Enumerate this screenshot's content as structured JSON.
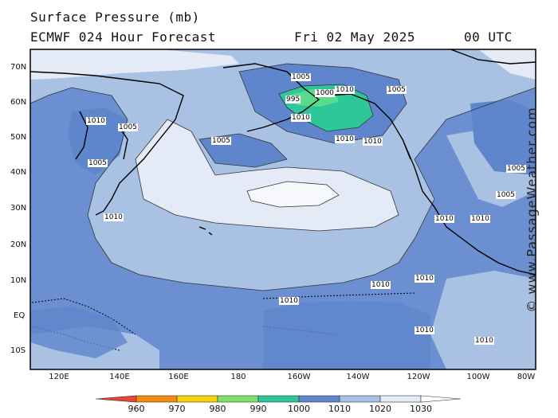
{
  "header": {
    "title": "Surface Pressure (mb)",
    "model": "ECMWF 024 Hour Forecast",
    "date": "Fri 02 May 2025",
    "time": "00 UTC"
  },
  "lat_labels": [
    "70N",
    "60N",
    "50N",
    "40N",
    "30N",
    "20N",
    "10N",
    "EQ",
    "10S"
  ],
  "lon_labels": [
    "120E",
    "140E",
    "160E",
    "180",
    "160W",
    "140W",
    "120W",
    "100W",
    "80W"
  ],
  "colorbar": {
    "labels": [
      "960",
      "970",
      "980",
      "990",
      "1000",
      "1010",
      "1020",
      "1030"
    ],
    "colors": [
      "#e8443a",
      "#f28c0f",
      "#f5d20a",
      "#7ee26a",
      "#2ec79a",
      "#5f86cc",
      "#a8c0e2",
      "#e4ebf6"
    ]
  },
  "isobar_labels": [
    "1010",
    "1005",
    "1000",
    "995",
    "1010",
    "1010",
    "1005",
    "1010",
    "1005",
    "1005",
    "1005",
    "1010",
    "1010",
    "1010",
    "1010",
    "1005",
    "1005",
    "1010",
    "1010",
    "1010",
    "1010",
    "1010"
  ],
  "watermark": "© www.PassageWeather.com",
  "colors": {
    "frame": "#000000",
    "ocean_1010": "#6b8fd0",
    "ocean_1015": "#a9c1e3",
    "ocean_1020": "#e4ebf6",
    "low_990": "#2ec79a",
    "low_985": "#58dc8c"
  }
}
